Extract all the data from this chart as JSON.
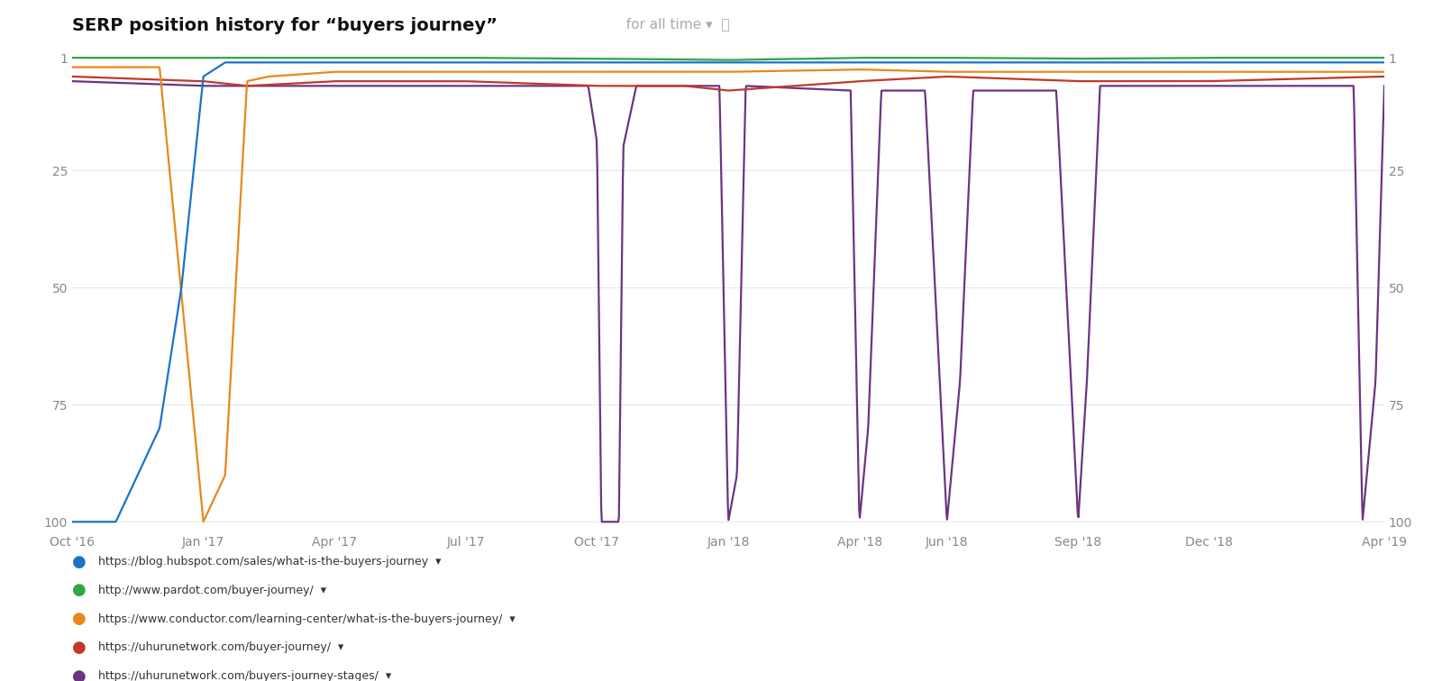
{
  "title_bold": "SERP position history for \"buyers journey\"",
  "title_light": " for all time ▾",
  "background_color": "#ffffff",
  "grid_color": "#e8e8e8",
  "y_ticks": [
    1,
    25,
    50,
    75,
    100
  ],
  "x_tick_labels": [
    "Oct '16",
    "Jan '17",
    "Apr '17",
    "Jul '17",
    "Oct '17",
    "Jan '18",
    "Apr '18",
    "Jun '18",
    "Sep '18",
    "Dec '18",
    "Apr '19"
  ],
  "x_tick_positions": [
    0,
    3,
    6,
    9,
    12,
    15,
    18,
    20,
    23,
    26,
    30
  ],
  "legend_items": [
    {
      "label": "https://blog.hubspot.com/sales/what-is-the-buyers-journey",
      "color": "#1a73c8"
    },
    {
      "label": "http://www.pardot.com/buyer-journey/",
      "color": "#2da843"
    },
    {
      "label": "https://www.conductor.com/learning-center/what-is-the-buyers-journey/",
      "color": "#e8891a"
    },
    {
      "label": "https://uhurunetwork.com/buyer-journey/",
      "color": "#c0392b"
    },
    {
      "label": "https://uhurunetwork.com/buyers-journey-stages/",
      "color": "#6c3483"
    }
  ],
  "hubspot_pts": [
    [
      0,
      100
    ],
    [
      1,
      100
    ],
    [
      2,
      80
    ],
    [
      2.5,
      50
    ],
    [
      3,
      5
    ],
    [
      3.5,
      2
    ],
    [
      4,
      2
    ],
    [
      6,
      2
    ],
    [
      9,
      2
    ],
    [
      12,
      2
    ],
    [
      15,
      2
    ],
    [
      18,
      2
    ],
    [
      20,
      2
    ],
    [
      23,
      2
    ],
    [
      26,
      2
    ],
    [
      30,
      2
    ]
  ],
  "pardot_pts": [
    [
      0,
      1
    ],
    [
      3,
      1
    ],
    [
      6,
      1
    ],
    [
      9,
      1
    ],
    [
      12,
      1.2
    ],
    [
      15,
      1.5
    ],
    [
      18,
      1
    ],
    [
      20,
      1
    ],
    [
      23,
      1.2
    ],
    [
      26,
      1
    ],
    [
      30,
      1
    ]
  ],
  "conductor_pts": [
    [
      0,
      3
    ],
    [
      2,
      3
    ],
    [
      3,
      100
    ],
    [
      3.5,
      90
    ],
    [
      4,
      6
    ],
    [
      4.5,
      5
    ],
    [
      6,
      4
    ],
    [
      9,
      4
    ],
    [
      12,
      4
    ],
    [
      15,
      4
    ],
    [
      18,
      3.5
    ],
    [
      20,
      4
    ],
    [
      23,
      4
    ],
    [
      26,
      4
    ],
    [
      30,
      4
    ]
  ],
  "uhuru_j_pts": [
    [
      0,
      5
    ],
    [
      3,
      6
    ],
    [
      4,
      7
    ],
    [
      6,
      6
    ],
    [
      9,
      6
    ],
    [
      12,
      7
    ],
    [
      14,
      7
    ],
    [
      15,
      8
    ],
    [
      18,
      6
    ],
    [
      20,
      5
    ],
    [
      23,
      6
    ],
    [
      26,
      6
    ],
    [
      30,
      5
    ]
  ],
  "uhuru_s_pts": [
    [
      0,
      6
    ],
    [
      3,
      7
    ],
    [
      6,
      7
    ],
    [
      9,
      7
    ],
    [
      11.8,
      7
    ],
    [
      12.0,
      19
    ],
    [
      12.1,
      100
    ],
    [
      12.5,
      100
    ],
    [
      12.6,
      20
    ],
    [
      12.9,
      7
    ],
    [
      14.8,
      7
    ],
    [
      15.0,
      100
    ],
    [
      15.2,
      90
    ],
    [
      15.4,
      7
    ],
    [
      17.8,
      8
    ],
    [
      18.0,
      100
    ],
    [
      18.2,
      80
    ],
    [
      18.5,
      8
    ],
    [
      19.5,
      8
    ],
    [
      20.0,
      100
    ],
    [
      20.3,
      70
    ],
    [
      20.6,
      8
    ],
    [
      22.5,
      8
    ],
    [
      23.0,
      100
    ],
    [
      23.2,
      70
    ],
    [
      23.5,
      7
    ],
    [
      25.0,
      7
    ],
    [
      29.3,
      7
    ],
    [
      29.5,
      100
    ],
    [
      29.8,
      70
    ],
    [
      30.0,
      7
    ]
  ],
  "line_width": 1.6,
  "title_bold_fontsize": 14,
  "title_light_fontsize": 11
}
